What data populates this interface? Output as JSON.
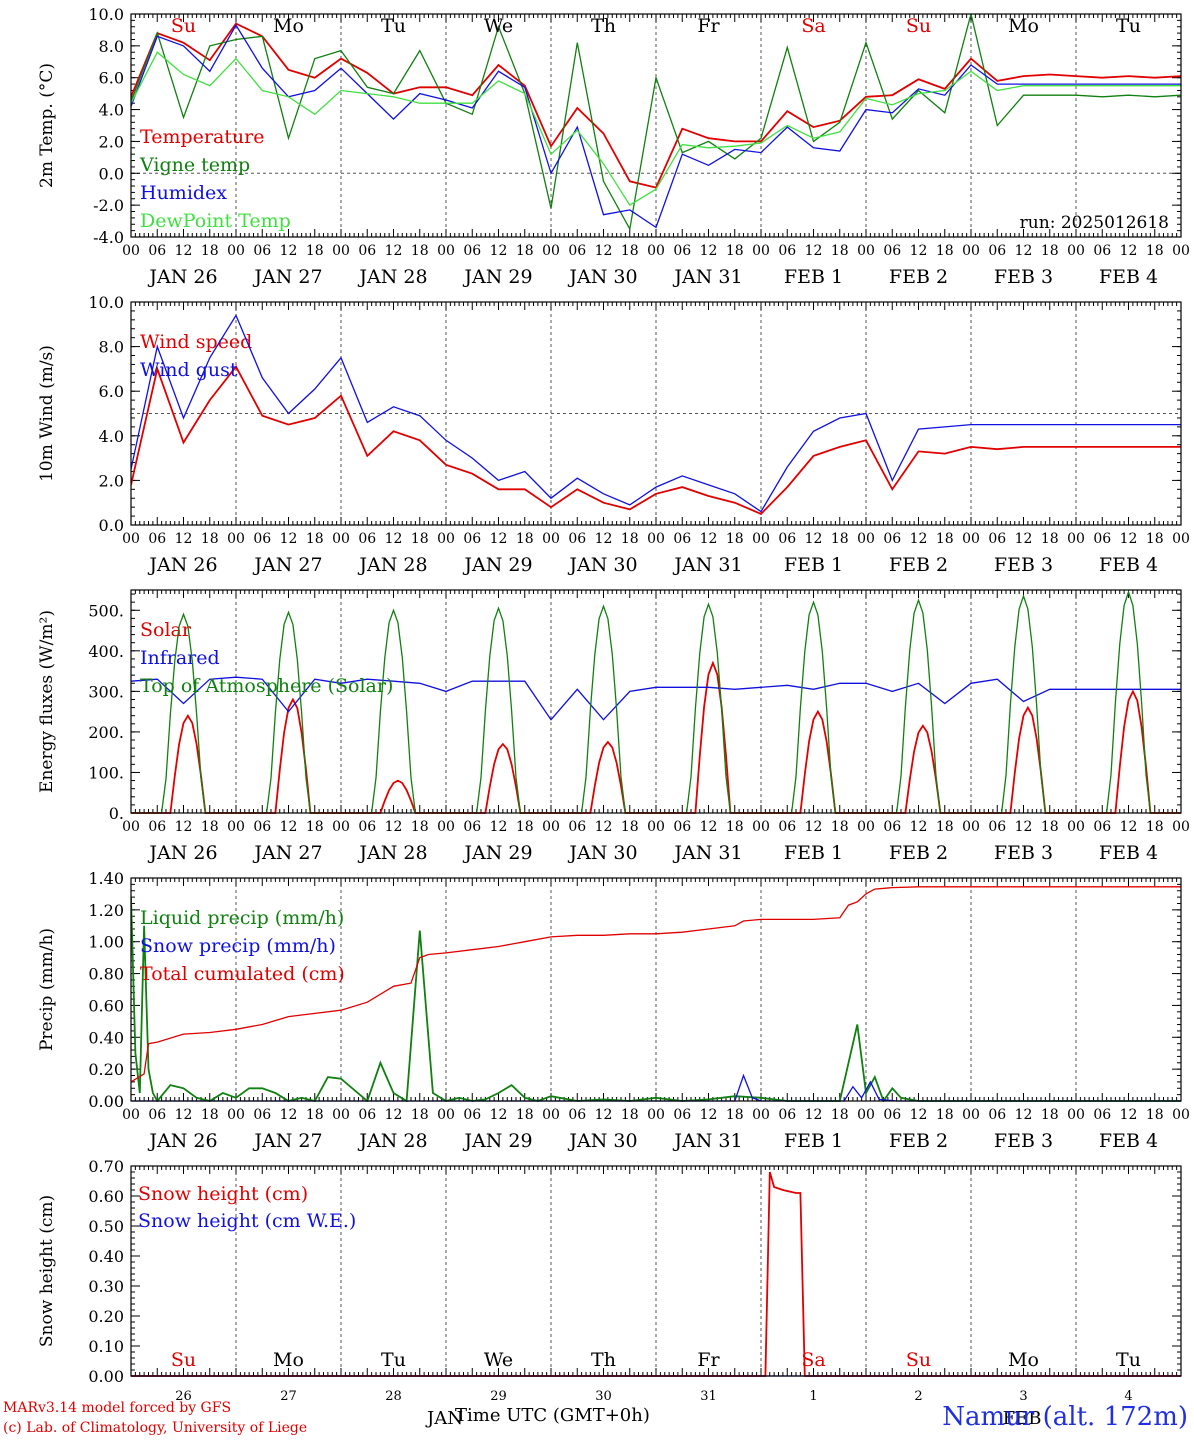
{
  "x_axis": {
    "hour_labels": [
      "00",
      "06",
      "12",
      "18"
    ],
    "final_hour_label": "00",
    "date_labels": [
      "JAN 26",
      "JAN 27",
      "JAN 28",
      "JAN 29",
      "JAN 30",
      "JAN 31",
      "FEB  1",
      "FEB  2",
      "FEB  3",
      "FEB  4"
    ],
    "weekdays": [
      "Su",
      "Mo",
      "Tu",
      "We",
      "Th",
      "Fr",
      "Sa",
      "Su",
      "Mo",
      "Tu"
    ],
    "weekend_color": "#e00000",
    "bottom_day_numbers": [
      "26",
      "27",
      "28",
      "29",
      "30",
      "31",
      "1",
      "2",
      "3",
      "4"
    ],
    "bottom_month_labels": [
      "JAN",
      "FEB"
    ],
    "title": "Time UTC (GMT+0h)"
  },
  "footer": {
    "model_line": "MARv3.14 model forced by GFS",
    "credit_line": "(c) Lab. of Climatology, University of Liege",
    "station": "Namur (alt. 172m)"
  },
  "chart_data": [
    {
      "type": "line",
      "ylabel": "2m Temp. (°C)",
      "ylim": [
        -4,
        10
      ],
      "yticks": [
        -4,
        -2,
        0,
        2,
        4,
        6,
        8,
        10
      ],
      "tick_decimals": 1,
      "reference_line": 0,
      "annotation": "run: 2025012618",
      "x_unit": "hours from 2025-01-26 00 UTC",
      "series": [
        {
          "name": "Temperature",
          "color": "#e00000",
          "x": [
            0,
            6,
            12,
            18,
            24,
            30,
            36,
            42,
            48,
            54,
            60,
            66,
            72,
            78,
            84,
            90,
            96,
            102,
            108,
            114,
            120,
            126,
            132,
            138,
            144,
            150,
            156,
            162,
            168,
            174,
            180,
            186,
            192,
            198,
            204,
            210,
            216,
            222,
            228,
            234,
            240
          ],
          "values": [
            4.8,
            8.8,
            8.2,
            7.1,
            9.4,
            8.6,
            6.5,
            6.0,
            7.2,
            6.3,
            5.0,
            5.4,
            5.4,
            4.9,
            6.8,
            5.5,
            1.7,
            4.1,
            2.5,
            -0.5,
            -0.9,
            2.8,
            2.2,
            2.0,
            2.0,
            3.9,
            2.9,
            3.3,
            4.8,
            4.9,
            5.9,
            5.3,
            7.2,
            5.8,
            6.1,
            6.2,
            6.1,
            6.0,
            6.1,
            6.0,
            6.1
          ]
        },
        {
          "name": "Vigne temp",
          "color": "#108010",
          "x": [
            0,
            6,
            12,
            18,
            24,
            30,
            36,
            42,
            48,
            54,
            60,
            66,
            72,
            78,
            84,
            90,
            96,
            102,
            108,
            114,
            120,
            126,
            132,
            138,
            144,
            150,
            156,
            162,
            168,
            174,
            180,
            186,
            192,
            198,
            204,
            210,
            216,
            222,
            228,
            234,
            240
          ],
          "values": [
            4.5,
            8.8,
            3.5,
            8.0,
            8.4,
            8.6,
            2.2,
            7.2,
            7.7,
            5.4,
            5.0,
            7.7,
            4.4,
            3.7,
            9.2,
            5.0,
            -2.2,
            8.2,
            -0.5,
            -3.5,
            6.0,
            1.3,
            2.0,
            0.9,
            2.2,
            7.9,
            2.0,
            3.2,
            8.2,
            3.4,
            5.2,
            3.8,
            10.0,
            3.0,
            4.9,
            4.9,
            4.9,
            4.8,
            4.9,
            4.8,
            4.9
          ]
        },
        {
          "name": "Humidex",
          "color": "#1010e0",
          "x": [
            0,
            6,
            12,
            18,
            24,
            30,
            36,
            42,
            48,
            54,
            60,
            66,
            72,
            78,
            84,
            90,
            96,
            102,
            108,
            114,
            120,
            126,
            132,
            138,
            144,
            150,
            156,
            162,
            168,
            174,
            180,
            186,
            192,
            198,
            204,
            210,
            216,
            222,
            228,
            234,
            240
          ],
          "values": [
            4.2,
            8.6,
            8.0,
            6.4,
            9.3,
            6.6,
            4.8,
            5.2,
            6.6,
            5.0,
            3.4,
            5.0,
            4.6,
            4.1,
            6.4,
            5.4,
            0.0,
            2.9,
            -2.6,
            -2.3,
            -3.4,
            1.2,
            0.5,
            1.5,
            1.3,
            2.9,
            1.6,
            1.4,
            4.0,
            3.8,
            5.3,
            4.9,
            6.8,
            5.6,
            5.6,
            5.6,
            5.6,
            5.6,
            5.6,
            5.6,
            5.6
          ]
        },
        {
          "name": "DewPoint Temp",
          "color": "#40e040",
          "x": [
            0,
            6,
            12,
            18,
            24,
            30,
            36,
            42,
            48,
            54,
            60,
            66,
            72,
            78,
            84,
            90,
            96,
            102,
            108,
            114,
            120,
            126,
            132,
            138,
            144,
            150,
            156,
            162,
            168,
            174,
            180,
            186,
            192,
            198,
            204,
            210,
            216,
            222,
            228,
            234,
            240
          ],
          "values": [
            4.4,
            7.6,
            6.2,
            5.5,
            7.2,
            5.2,
            4.8,
            3.7,
            5.2,
            5.0,
            4.8,
            4.4,
            4.4,
            4.4,
            5.8,
            5.0,
            1.2,
            2.7,
            0.6,
            -2.0,
            -1.0,
            1.8,
            1.6,
            1.7,
            1.9,
            3.0,
            2.2,
            2.6,
            4.7,
            4.3,
            5.0,
            5.2,
            6.4,
            5.2,
            5.5,
            5.5,
            5.5,
            5.5,
            5.5,
            5.5,
            5.5
          ]
        }
      ]
    },
    {
      "type": "line",
      "ylabel": "10m Wind (m/s)",
      "ylim": [
        0,
        10
      ],
      "yticks": [
        0,
        2,
        4,
        6,
        8,
        10
      ],
      "tick_decimals": 1,
      "reference_line": 5,
      "annotation": "",
      "x_unit": "hours from 2025-01-26 00 UTC",
      "series": [
        {
          "name": "Wind speed",
          "color": "#e00000",
          "x": [
            0,
            6,
            12,
            18,
            24,
            30,
            36,
            42,
            48,
            54,
            60,
            66,
            72,
            78,
            84,
            90,
            96,
            102,
            108,
            114,
            120,
            126,
            132,
            138,
            144,
            150,
            156,
            162,
            168,
            174,
            180,
            186,
            192,
            198,
            204,
            210,
            216,
            222,
            228,
            234,
            240
          ],
          "values": [
            1.8,
            7.0,
            3.7,
            5.6,
            7.1,
            4.9,
            4.5,
            4.8,
            5.8,
            3.1,
            4.2,
            3.8,
            2.7,
            2.3,
            1.6,
            1.6,
            0.8,
            1.6,
            1.0,
            0.7,
            1.4,
            1.7,
            1.3,
            1.0,
            0.5,
            1.7,
            3.1,
            3.5,
            3.8,
            1.6,
            3.3,
            3.2,
            3.5,
            3.4,
            3.5,
            3.5,
            3.5,
            3.5,
            3.5,
            3.5,
            3.5
          ]
        },
        {
          "name": "Wind gust",
          "color": "#1010e0",
          "x": [
            0,
            6,
            12,
            18,
            24,
            30,
            36,
            42,
            48,
            54,
            60,
            66,
            72,
            78,
            84,
            90,
            96,
            102,
            108,
            114,
            120,
            126,
            132,
            138,
            144,
            150,
            156,
            162,
            168,
            174,
            180,
            186,
            192,
            198,
            204,
            210,
            216,
            222,
            228,
            234,
            240
          ],
          "values": [
            2.5,
            8.0,
            4.8,
            7.5,
            9.4,
            6.6,
            5.0,
            6.1,
            7.5,
            4.6,
            5.3,
            4.9,
            3.8,
            3.0,
            2.0,
            2.4,
            1.2,
            2.1,
            1.4,
            0.9,
            1.7,
            2.2,
            1.8,
            1.4,
            0.6,
            2.6,
            4.2,
            4.8,
            5.0,
            2.0,
            4.3,
            4.4,
            4.5,
            4.5,
            4.5,
            4.5,
            4.5,
            4.5,
            4.5,
            4.5,
            4.5
          ]
        }
      ]
    },
    {
      "type": "line",
      "ylabel": "Energy fluxes (W/m²)",
      "ylim": [
        0,
        550
      ],
      "yticks": [
        0,
        100,
        200,
        300,
        400,
        500
      ],
      "tick_decimals": 0,
      "tick_suffix": ".",
      "reference_line": null,
      "annotation": "",
      "x_unit": "hours from 2025-01-26 00 UTC",
      "series": [
        {
          "name": "Solar",
          "color": "#e00000",
          "peaks": [
            240,
            280,
            80,
            170,
            175,
            370,
            250,
            215,
            260,
            300
          ],
          "peak_offset_hours": 13,
          "half_width_hours": 4
        },
        {
          "name": "Infrared",
          "color": "#1010e0",
          "x": [
            0,
            6,
            12,
            18,
            24,
            30,
            36,
            42,
            48,
            54,
            60,
            66,
            72,
            78,
            84,
            90,
            96,
            102,
            108,
            114,
            120,
            126,
            132,
            138,
            144,
            150,
            156,
            162,
            168,
            174,
            180,
            186,
            192,
            198,
            204,
            210,
            216,
            222,
            228,
            234,
            240
          ],
          "values": [
            325,
            330,
            270,
            330,
            335,
            330,
            250,
            330,
            320,
            330,
            325,
            320,
            300,
            325,
            325,
            325,
            230,
            305,
            230,
            300,
            310,
            310,
            310,
            305,
            310,
            315,
            305,
            320,
            320,
            300,
            320,
            270,
            320,
            330,
            275,
            305,
            305,
            305,
            305,
            305,
            305
          ]
        },
        {
          "name": "Top of Atmosphere (Solar)",
          "color": "#108010",
          "peaks": [
            490,
            495,
            500,
            505,
            510,
            515,
            520,
            525,
            535,
            545
          ],
          "peak_offset_hours": 12,
          "half_width_hours": 4.5
        }
      ]
    },
    {
      "type": "line",
      "ylabel": "Precip (mm/h)",
      "ylim": [
        0,
        1.4
      ],
      "yticks": [
        0,
        0.2,
        0.4,
        0.6,
        0.8,
        1.0,
        1.2,
        1.4
      ],
      "tick_decimals": 2,
      "reference_line": null,
      "annotation": "",
      "x_unit": "hours from 2025-01-26 00 UTC",
      "series": [
        {
          "name": "Liquid precip (mm/h)",
          "color": "#108010",
          "x": [
            0,
            1,
            2,
            3,
            4,
            5,
            6,
            9,
            12,
            15,
            18,
            21,
            24,
            27,
            30,
            33,
            36,
            39,
            42,
            45,
            48,
            54,
            57,
            60,
            63,
            66,
            69,
            72,
            75,
            78,
            81,
            84,
            87,
            90,
            93,
            96,
            102,
            108,
            114,
            120,
            126,
            132,
            138,
            144,
            150,
            156,
            162,
            166,
            168,
            170,
            172,
            174,
            176,
            180,
            186,
            192,
            198,
            204,
            210,
            216,
            222,
            228,
            234,
            240
          ],
          "values": [
            1.28,
            0.3,
            0.05,
            1.1,
            0.2,
            0.05,
            0.0,
            0.1,
            0.08,
            0.02,
            0.0,
            0.05,
            0.02,
            0.08,
            0.08,
            0.05,
            0.0,
            0.02,
            0.0,
            0.15,
            0.14,
            0.0,
            0.24,
            0.05,
            0.0,
            1.07,
            0.05,
            0.0,
            0.02,
            0.0,
            0.01,
            0.05,
            0.1,
            0.02,
            0.0,
            0.03,
            0.0,
            0.01,
            0.0,
            0.02,
            0.0,
            0.01,
            0.03,
            0.02,
            0.0,
            0.0,
            0.0,
            0.48,
            0.05,
            0.15,
            0.0,
            0.08,
            0.02,
            0.0,
            0.0,
            0.0,
            0.0,
            0.0,
            0.0,
            0.0,
            0.0,
            0.0,
            0.0,
            0.0
          ]
        },
        {
          "name": "Snow precip (mm/h)",
          "color": "#1010e0",
          "x": [
            0,
            60,
            96,
            138,
            140,
            142,
            144,
            163,
            165,
            167,
            169,
            171,
            175,
            180,
            240
          ],
          "values": [
            0.0,
            0.0,
            0.0,
            0.0,
            0.16,
            0.02,
            0.0,
            0.0,
            0.09,
            0.02,
            0.12,
            0.01,
            0.0,
            0.0,
            0.0
          ]
        },
        {
          "name": "Total cumulated (cm)",
          "color": "#e00000",
          "x": [
            0,
            3,
            4,
            6,
            12,
            18,
            24,
            30,
            36,
            42,
            48,
            54,
            60,
            64,
            66,
            68,
            72,
            78,
            84,
            90,
            96,
            102,
            108,
            114,
            120,
            126,
            132,
            138,
            140,
            144,
            150,
            156,
            162,
            164,
            166,
            168,
            170,
            174,
            180,
            186,
            192,
            198,
            204,
            210,
            216,
            222,
            228,
            234,
            240
          ],
          "values": [
            0.12,
            0.17,
            0.36,
            0.37,
            0.42,
            0.43,
            0.45,
            0.48,
            0.53,
            0.55,
            0.57,
            0.62,
            0.72,
            0.74,
            0.9,
            0.92,
            0.93,
            0.95,
            0.97,
            1.0,
            1.03,
            1.04,
            1.04,
            1.05,
            1.05,
            1.06,
            1.08,
            1.1,
            1.13,
            1.14,
            1.14,
            1.14,
            1.15,
            1.23,
            1.25,
            1.3,
            1.33,
            1.34,
            1.345,
            1.345,
            1.345,
            1.345,
            1.345,
            1.345,
            1.345,
            1.345,
            1.345,
            1.345,
            1.345
          ]
        }
      ]
    },
    {
      "type": "line",
      "ylabel": "Snow height (cm)",
      "ylim": [
        0,
        0.7
      ],
      "yticks": [
        0,
        0.1,
        0.2,
        0.3,
        0.4,
        0.5,
        0.6,
        0.7
      ],
      "tick_decimals": 2,
      "reference_line": null,
      "annotation": "",
      "x_unit": "hours from 2025-01-26 00 UTC",
      "series": [
        {
          "name": "Snow height (cm)",
          "color": "#e00000",
          "x": [
            0,
            145,
            146,
            147,
            149,
            152,
            153,
            154,
            240
          ],
          "values": [
            0,
            0,
            0.68,
            0.63,
            0.62,
            0.61,
            0.61,
            0,
            0
          ]
        },
        {
          "name": "Snow height (cm W.E.)",
          "color": "#1010e0",
          "x": [
            0,
            240
          ],
          "values": [
            0,
            0
          ]
        }
      ]
    }
  ]
}
